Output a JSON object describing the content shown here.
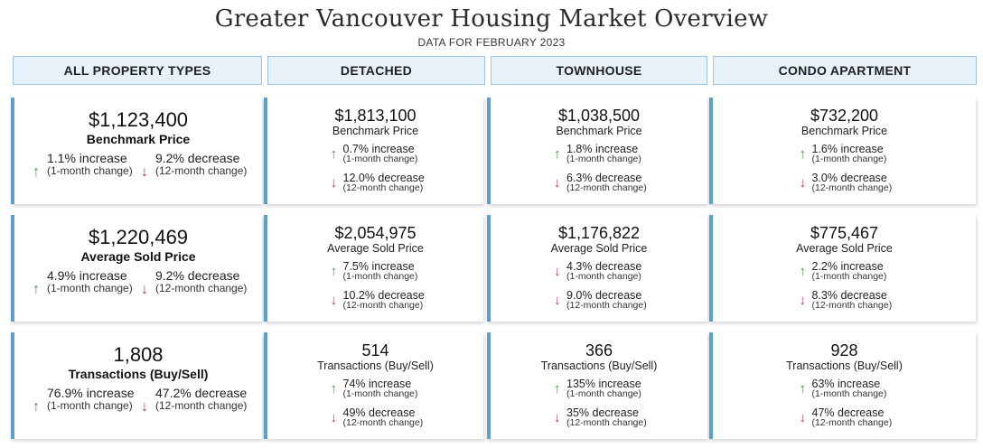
{
  "title": "Greater Vancouver Housing Market Overview",
  "subtitle": "DATA FOR FEBRUARY 2023",
  "colors": {
    "accent": "#5b9fd1",
    "header_bg": "#e6f1f9",
    "up": "#3f9a3a",
    "down": "#c1306d"
  },
  "headers": [
    "ALL PROPERTY TYPES",
    "DETACHED",
    "TOWNHOUSE",
    "CONDO APARTMENT"
  ],
  "rows": [
    {
      "cells": [
        {
          "value": "$1,123,400",
          "label": "Benchmark Price",
          "m1": {
            "pct": "1.1% increase",
            "sub": "(1-month change)",
            "dir": "up"
          },
          "m12": {
            "pct": "9.2% decrease",
            "sub": "(12-month change)",
            "dir": "down"
          }
        },
        {
          "value": "$1,813,100",
          "label": "Benchmark Price",
          "m1": {
            "pct": "0.7% increase",
            "sub": "(1-month change)",
            "dir": "up"
          },
          "m12": {
            "pct": "12.0% decrease",
            "sub": "(12-month change)",
            "dir": "down"
          }
        },
        {
          "value": "$1,038,500",
          "label": "Benchmark Price",
          "m1": {
            "pct": "1.8% increase",
            "sub": "(1-month change)",
            "dir": "up"
          },
          "m12": {
            "pct": "6.3% decrease",
            "sub": "(12-month change)",
            "dir": "down"
          }
        },
        {
          "value": "$732,200",
          "label": "Benchmark Price",
          "m1": {
            "pct": "1.6% increase",
            "sub": "(1-month change)",
            "dir": "up"
          },
          "m12": {
            "pct": "3.0% decrease",
            "sub": "(12-month change)",
            "dir": "down"
          }
        }
      ]
    },
    {
      "cells": [
        {
          "value": "$1,220,469",
          "label": "Average Sold Price",
          "m1": {
            "pct": "4.9% increase",
            "sub": "(1-month change)",
            "dir": "up"
          },
          "m12": {
            "pct": "9.2% decrease",
            "sub": "(12-month change)",
            "dir": "down"
          }
        },
        {
          "value": "$2,054,975",
          "label": "Average Sold Price",
          "m1": {
            "pct": "7.5% increase",
            "sub": "(1-month change)",
            "dir": "up"
          },
          "m12": {
            "pct": "10.2% decrease",
            "sub": "(12-month change)",
            "dir": "down"
          }
        },
        {
          "value": "$1,176,822",
          "label": "Average Sold Price",
          "m1": {
            "pct": "4.3% decrease",
            "sub": "(1-month change)",
            "dir": "down"
          },
          "m12": {
            "pct": "9.0% decrease",
            "sub": "(12-month change)",
            "dir": "down"
          }
        },
        {
          "value": "$775,467",
          "label": "Average Sold Price",
          "m1": {
            "pct": "2.2% increase",
            "sub": "(1-month change)",
            "dir": "up"
          },
          "m12": {
            "pct": "8.3% decrease",
            "sub": "(12-month change)",
            "dir": "down"
          }
        }
      ]
    },
    {
      "cells": [
        {
          "value": "1,808",
          "label": "Transactions (Buy/Sell)",
          "m1": {
            "pct": "76.9% increase",
            "sub": "(1-month change)",
            "dir": "up"
          },
          "m12": {
            "pct": "47.2% decrease",
            "sub": "(12-month change)",
            "dir": "down"
          }
        },
        {
          "value": "514",
          "label": "Transactions (Buy/Sell)",
          "m1": {
            "pct": "74% increase",
            "sub": "(1-month change)",
            "dir": "up"
          },
          "m12": {
            "pct": "49% decrease",
            "sub": "(12-month change)",
            "dir": "down"
          }
        },
        {
          "value": "366",
          "label": "Transactions (Buy/Sell)",
          "m1": {
            "pct": "135% increase",
            "sub": "(1-month change)",
            "dir": "up"
          },
          "m12": {
            "pct": "35% decrease",
            "sub": "(12-month change)",
            "dir": "down"
          }
        },
        {
          "value": "928",
          "label": "Transactions (Buy/Sell)",
          "m1": {
            "pct": "63% increase",
            "sub": "(1-month change)",
            "dir": "up"
          },
          "m12": {
            "pct": "47% decrease",
            "sub": "(12-month change)",
            "dir": "down"
          }
        }
      ]
    }
  ]
}
